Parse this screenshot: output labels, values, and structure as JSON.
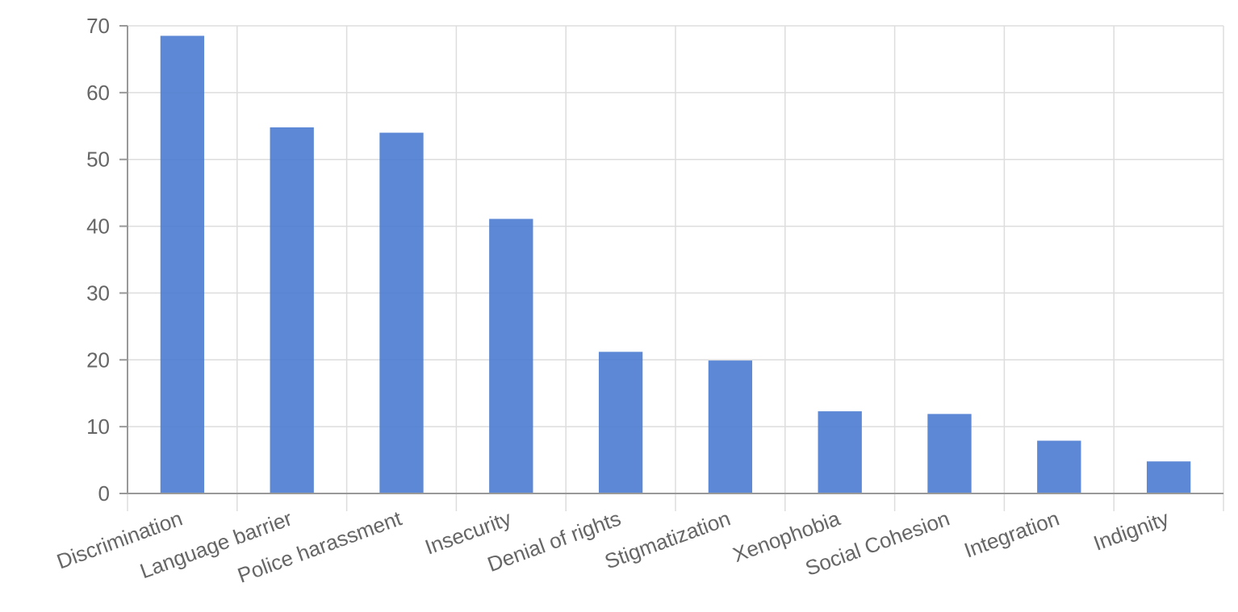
{
  "chart_data": {
    "type": "bar",
    "categories": [
      "Discrimination",
      "Language barrier",
      "Police harassment",
      "Insecurity",
      "Denial of rights",
      "Stigmatization",
      "Xenophobia",
      "Social Cohesion",
      "Integration",
      "Indignity"
    ],
    "values": [
      68.5,
      54.8,
      54.0,
      41.1,
      21.2,
      19.9,
      12.3,
      11.9,
      7.9,
      4.8
    ],
    "ylim": [
      0,
      70
    ],
    "yticks": [
      "0",
      "10",
      "20",
      "30",
      "40",
      "50",
      "60",
      "70"
    ],
    "grid": true,
    "bar_color": "#4a7bd0",
    "title": "",
    "xlabel": "",
    "ylabel": ""
  }
}
